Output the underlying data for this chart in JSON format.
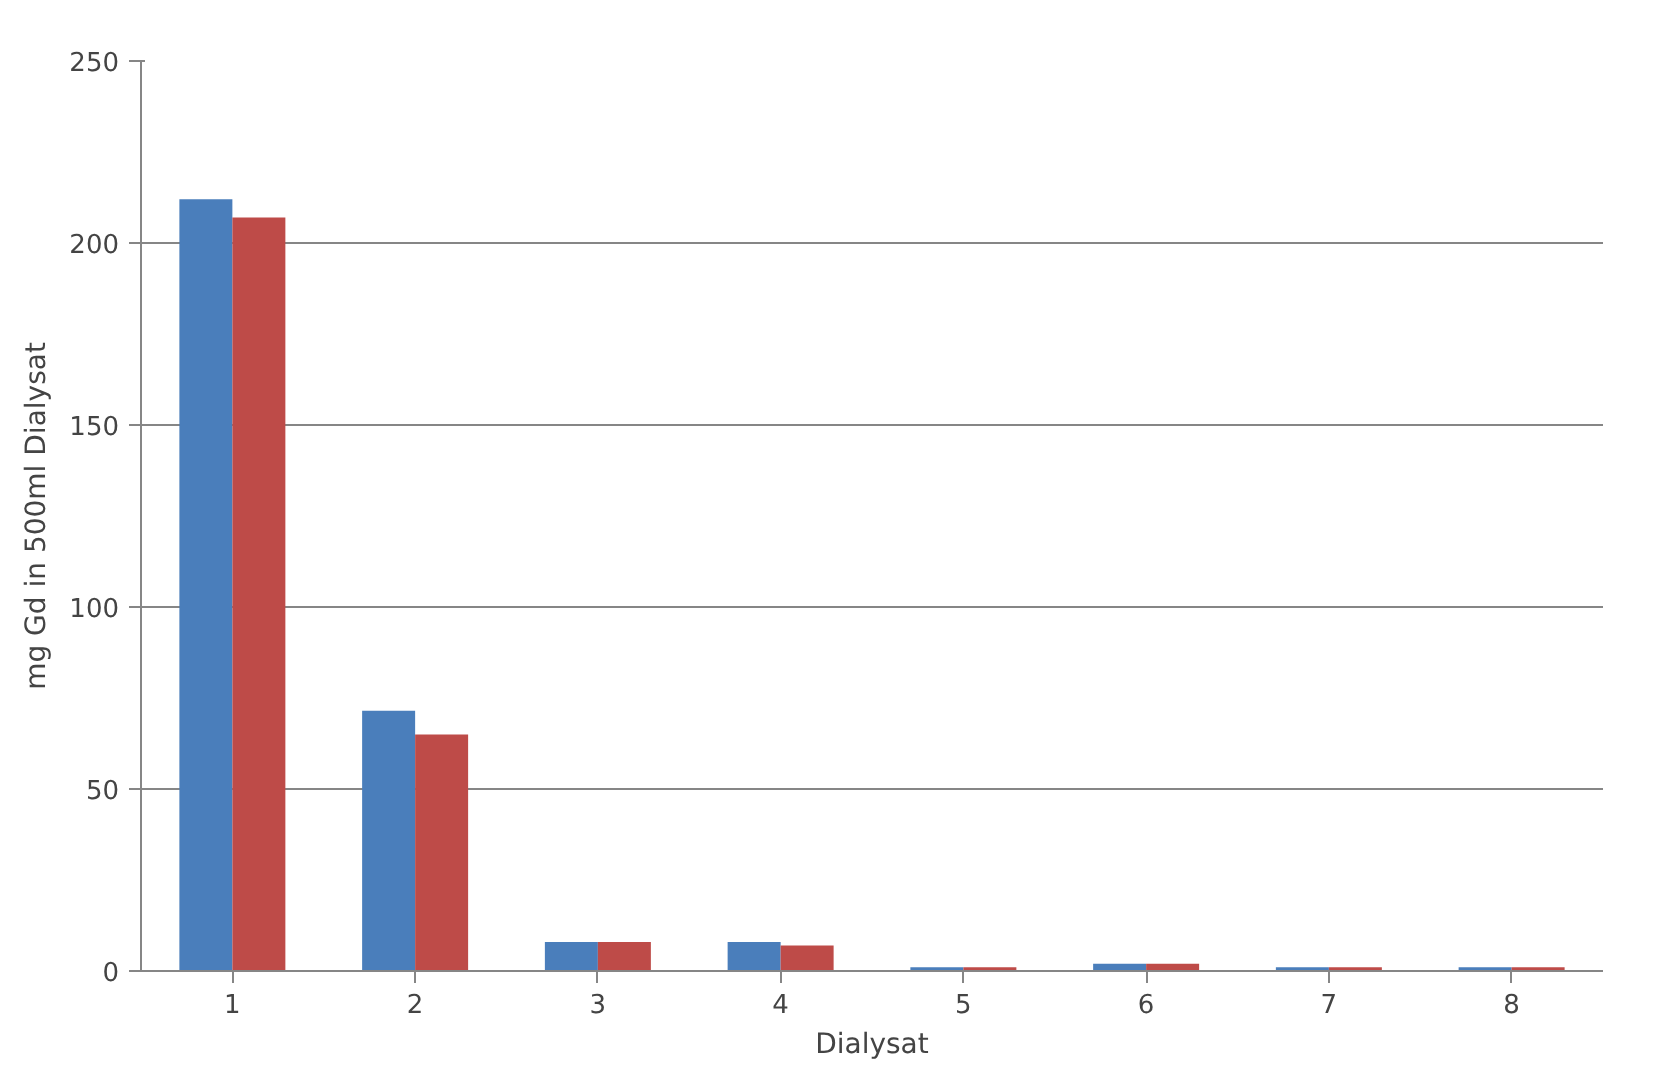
{
  "chart_data": {
    "type": "bar",
    "xlabel": "Dialysat",
    "ylabel": "mg Gd in 500ml Dialysat",
    "categories": [
      "1",
      "2",
      "3",
      "4",
      "5",
      "6",
      "7",
      "8"
    ],
    "series": [
      {
        "color": "#4a7ebb",
        "values": [
          212,
          71.5,
          8,
          8,
          1,
          2,
          1,
          1
        ]
      },
      {
        "color": "#be4b48",
        "values": [
          207,
          65,
          8,
          7,
          1,
          2,
          1,
          1
        ]
      }
    ],
    "ylim": [
      0,
      250
    ],
    "yticks": [
      0,
      50,
      100,
      150,
      200,
      250
    ],
    "grid": "y"
  }
}
